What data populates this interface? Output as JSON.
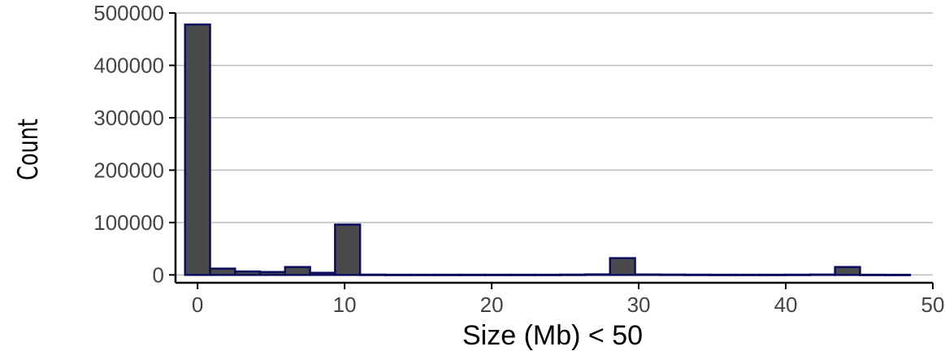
{
  "chart_data": {
    "type": "bar",
    "title": "",
    "xlabel": "Size (Mb) < 50",
    "ylabel": "Count",
    "xlim": [
      -1.5,
      50
    ],
    "ylim": [
      -15000,
      500000
    ],
    "x_ticks": [
      0,
      10,
      20,
      30,
      40,
      50
    ],
    "y_ticks": [
      0,
      100000,
      200000,
      300000,
      400000,
      500000
    ],
    "bin_width": 1.7,
    "bins": [
      {
        "x": 0,
        "value": 478000
      },
      {
        "x": 1.7,
        "value": 12000
      },
      {
        "x": 3.4,
        "value": 6500
      },
      {
        "x": 5.1,
        "value": 5500
      },
      {
        "x": 6.8,
        "value": 15000
      },
      {
        "x": 8.5,
        "value": 4000
      },
      {
        "x": 10.2,
        "value": 96000
      },
      {
        "x": 11.9,
        "value": 500
      },
      {
        "x": 13.6,
        "value": 300
      },
      {
        "x": 15.3,
        "value": 300
      },
      {
        "x": 17.0,
        "value": 300
      },
      {
        "x": 18.7,
        "value": 300
      },
      {
        "x": 20.4,
        "value": 300
      },
      {
        "x": 22.1,
        "value": 300
      },
      {
        "x": 23.8,
        "value": 300
      },
      {
        "x": 25.5,
        "value": 500
      },
      {
        "x": 27.2,
        "value": 1000
      },
      {
        "x": 28.9,
        "value": 32000
      },
      {
        "x": 30.6,
        "value": 800
      },
      {
        "x": 32.3,
        "value": 600
      },
      {
        "x": 34.0,
        "value": 400
      },
      {
        "x": 35.7,
        "value": 300
      },
      {
        "x": 37.4,
        "value": 300
      },
      {
        "x": 39.1,
        "value": 300
      },
      {
        "x": 40.8,
        "value": 400
      },
      {
        "x": 42.5,
        "value": 700
      },
      {
        "x": 44.2,
        "value": 15000
      },
      {
        "x": 45.9,
        "value": 300
      },
      {
        "x": 47.6,
        "value": 200
      }
    ],
    "grid": {
      "horizontal": true,
      "vertical": false
    },
    "legend": "none",
    "colors": {
      "bar_fill": "#4a4a4a",
      "bar_stroke": "#0c0c5e",
      "grid": "#bdbdbd",
      "axis": "#000000",
      "tick_text": "#444444"
    }
  }
}
